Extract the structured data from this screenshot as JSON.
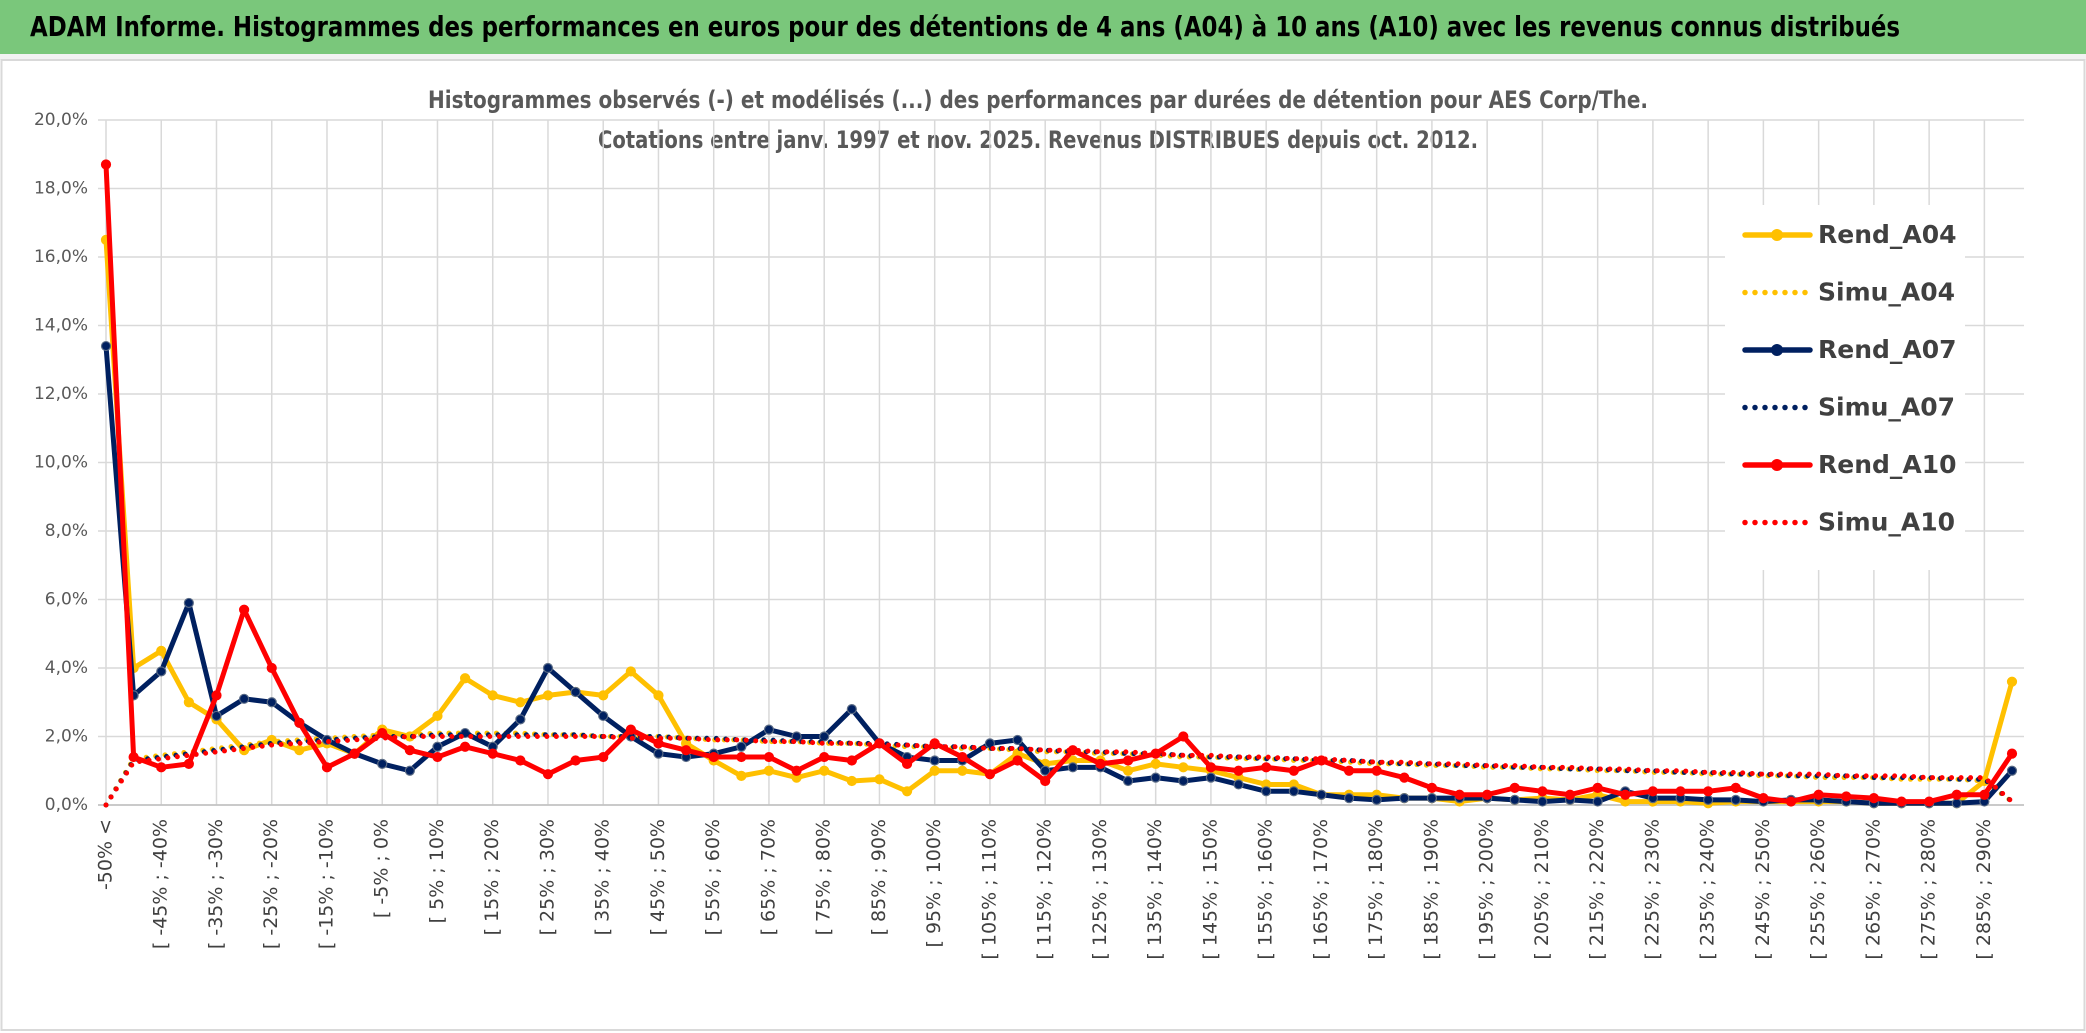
{
  "chart_data": {
    "type": "line",
    "title": "ADAM Informe. Histogrammes des performances en euros pour des détentions de 4 ans (A04) à 10 ans (A10) avec les revenus connus distribués",
    "subtitle": [
      "Histogrammes observés (-) et modélisés (...) des performances par durées de détention pour AES Corp/The.",
      "Cotations entre janv. 1997 et nov. 2025. Revenus DISTRIBUES depuis oct. 2012."
    ],
    "categories": [
      "-50% <",
      null,
      "[ -45% ; -40%",
      null,
      "[ -35% ; -30%",
      null,
      "[ -25% ; -20%",
      null,
      "[ -15% ; -10%",
      null,
      "[ -5% ; 0%",
      null,
      "[ 5% ; 10%",
      null,
      "[ 15% ; 20%",
      null,
      "[ 25% ; 30%",
      null,
      "[ 35% ; 40%",
      null,
      "[ 45% ; 50%",
      null,
      "[ 55% ; 60%",
      null,
      "[ 65% ; 70%",
      null,
      "[ 75% ; 80%",
      null,
      "[ 85% ; 90%",
      null,
      "[ 95% ; 100%",
      null,
      "[ 105% ; 110%",
      null,
      "[ 115% ; 120%",
      null,
      "[ 125% ; 130%",
      null,
      "[ 135% ; 140%",
      null,
      "[ 145% ; 150%",
      null,
      "[ 155% ; 160%",
      null,
      "[ 165% ; 170%",
      null,
      "[ 175% ; 180%",
      null,
      "[ 185% ; 190%",
      null,
      "[ 195% ; 200%",
      null,
      "[ 205% ; 210%",
      null,
      "[ 215% ; 220%",
      null,
      "[ 225% ; 230%",
      null,
      "[ 235% ; 240%",
      null,
      "[ 245% ; 250%",
      null,
      "[ 255% ; 260%",
      null,
      "[ 265% ; 270%",
      null,
      "[ 275% ; 280%",
      null,
      "[ 285% ; 290%",
      null
    ],
    "ylim": [
      0,
      20
    ],
    "yticks": [
      {
        "value": 0,
        "label": "0,0%"
      },
      {
        "value": 2,
        "label": "2,0%"
      },
      {
        "value": 4,
        "label": "4,0%"
      },
      {
        "value": 6,
        "label": "6,0%"
      },
      {
        "value": 8,
        "label": "8,0%"
      },
      {
        "value": 10,
        "label": "10,0%"
      },
      {
        "value": 12,
        "label": "12,0%"
      },
      {
        "value": 14,
        "label": "14,0%"
      },
      {
        "value": 16,
        "label": "16,0%"
      },
      {
        "value": 18,
        "label": "18,0%"
      },
      {
        "value": 20,
        "label": "20,0%"
      }
    ],
    "grid": true,
    "legend": "right",
    "series": [
      {
        "name": "Rend_A04",
        "color": "#ffc000",
        "style": "solid",
        "marker": true,
        "values": [
          16.5,
          4.0,
          4.5,
          3.0,
          2.5,
          1.6,
          1.9,
          1.6,
          1.8,
          1.5,
          2.2,
          2.0,
          2.6,
          3.7,
          3.2,
          3.0,
          3.2,
          3.3,
          3.2,
          3.9,
          3.2,
          1.8,
          1.3,
          0.85,
          1.0,
          0.8,
          1.0,
          0.7,
          0.75,
          0.4,
          1.0,
          1.0,
          0.9,
          1.5,
          1.2,
          1.3,
          1.3,
          1.0,
          1.2,
          1.1,
          1.0,
          0.8,
          0.6,
          0.6,
          0.3,
          0.3,
          0.3,
          0.2,
          0.2,
          0.1,
          0.2,
          0.15,
          0.2,
          0.15,
          0.3,
          0.1,
          0.1,
          0.1,
          0.05,
          0.1,
          0.1,
          0.1,
          0.1,
          0.1,
          0.05,
          0.05,
          0.05,
          0.05,
          0.7,
          3.6
        ]
      },
      {
        "name": "Simu_A04",
        "color": "#ffc000",
        "style": "dotted",
        "marker": false,
        "values": [
          0,
          1.35,
          1.45,
          1.55,
          1.65,
          1.75,
          1.85,
          1.9,
          1.95,
          2.0,
          2.05,
          2.05,
          2.1,
          2.1,
          2.1,
          2.1,
          2.05,
          2.05,
          2.0,
          2.0,
          2.0,
          1.95,
          1.9,
          1.9,
          1.85,
          1.85,
          1.8,
          1.8,
          1.75,
          1.7,
          1.7,
          1.65,
          1.65,
          1.6,
          1.55,
          1.55,
          1.5,
          1.5,
          1.45,
          1.4,
          1.4,
          1.35,
          1.35,
          1.3,
          1.3,
          1.25,
          1.2,
          1.2,
          1.15,
          1.15,
          1.1,
          1.1,
          1.05,
          1.05,
          1.0,
          1.0,
          0.95,
          0.95,
          0.9,
          0.9,
          0.85,
          0.85,
          0.8,
          0.8,
          0.8,
          0.75,
          0.75,
          0.75,
          0.7,
          0.1
        ]
      },
      {
        "name": "Rend_A07",
        "color": "#002060",
        "style": "solid",
        "marker": true,
        "values": [
          13.4,
          3.2,
          3.9,
          5.9,
          2.6,
          3.1,
          3.0,
          2.4,
          1.9,
          1.5,
          1.2,
          1.0,
          1.7,
          2.1,
          1.7,
          2.5,
          4.0,
          3.3,
          2.6,
          2.0,
          1.5,
          1.4,
          1.5,
          1.7,
          2.2,
          2.0,
          2.0,
          2.8,
          1.8,
          1.4,
          1.3,
          1.3,
          1.8,
          1.9,
          1.0,
          1.1,
          1.1,
          0.7,
          0.8,
          0.7,
          0.8,
          0.6,
          0.4,
          0.4,
          0.3,
          0.2,
          0.15,
          0.2,
          0.2,
          0.2,
          0.2,
          0.15,
          0.1,
          0.15,
          0.1,
          0.4,
          0.2,
          0.2,
          0.15,
          0.15,
          0.1,
          0.15,
          0.15,
          0.1,
          0.05,
          0.05,
          0.05,
          0.05,
          0.1,
          1.0
        ]
      },
      {
        "name": "Simu_A07",
        "color": "#002060",
        "style": "dotted",
        "marker": false,
        "values": [
          0,
          1.3,
          1.4,
          1.5,
          1.6,
          1.7,
          1.8,
          1.85,
          1.9,
          1.95,
          2.0,
          2.0,
          2.05,
          2.05,
          2.05,
          2.05,
          2.05,
          2.05,
          2.0,
          2.0,
          2.0,
          1.95,
          1.95,
          1.9,
          1.9,
          1.85,
          1.85,
          1.8,
          1.8,
          1.75,
          1.7,
          1.7,
          1.65,
          1.65,
          1.6,
          1.55,
          1.55,
          1.5,
          1.5,
          1.45,
          1.4,
          1.4,
          1.35,
          1.35,
          1.3,
          1.3,
          1.25,
          1.2,
          1.2,
          1.15,
          1.15,
          1.1,
          1.1,
          1.05,
          1.05,
          1.0,
          1.0,
          0.95,
          0.95,
          0.9,
          0.9,
          0.85,
          0.85,
          0.85,
          0.8,
          0.8,
          0.8,
          0.75,
          0.75,
          0.1
        ]
      },
      {
        "name": "Rend_A10",
        "color": "#ff0000",
        "style": "solid",
        "marker": true,
        "values": [
          18.7,
          1.4,
          1.1,
          1.2,
          3.2,
          5.7,
          4.0,
          2.4,
          1.1,
          1.5,
          2.1,
          1.6,
          1.4,
          1.7,
          1.5,
          1.3,
          0.9,
          1.3,
          1.4,
          2.2,
          1.8,
          1.6,
          1.4,
          1.4,
          1.4,
          1.0,
          1.4,
          1.3,
          1.8,
          1.2,
          1.8,
          1.4,
          0.9,
          1.3,
          0.7,
          1.6,
          1.2,
          1.3,
          1.5,
          2.0,
          1.1,
          1.0,
          1.1,
          1.0,
          1.3,
          1.0,
          1.0,
          0.8,
          0.5,
          0.3,
          0.3,
          0.5,
          0.4,
          0.3,
          0.5,
          0.3,
          0.4,
          0.4,
          0.4,
          0.5,
          0.2,
          0.1,
          0.3,
          0.25,
          0.2,
          0.1,
          0.1,
          0.3,
          0.3,
          1.5
        ]
      },
      {
        "name": "Simu_A10",
        "color": "#ff0000",
        "style": "dotted",
        "marker": false,
        "values": [
          0,
          1.25,
          1.35,
          1.45,
          1.55,
          1.65,
          1.75,
          1.8,
          1.85,
          1.9,
          1.95,
          2.0,
          2.0,
          2.0,
          2.0,
          2.0,
          2.0,
          2.0,
          2.0,
          1.95,
          1.95,
          1.95,
          1.9,
          1.9,
          1.85,
          1.85,
          1.8,
          1.8,
          1.75,
          1.75,
          1.7,
          1.7,
          1.65,
          1.65,
          1.6,
          1.6,
          1.55,
          1.55,
          1.5,
          1.45,
          1.45,
          1.4,
          1.4,
          1.35,
          1.35,
          1.3,
          1.25,
          1.25,
          1.2,
          1.2,
          1.15,
          1.15,
          1.1,
          1.1,
          1.05,
          1.05,
          1.0,
          1.0,
          0.95,
          0.95,
          0.9,
          0.9,
          0.9,
          0.85,
          0.85,
          0.85,
          0.8,
          0.8,
          0.8,
          0.1
        ]
      }
    ]
  }
}
